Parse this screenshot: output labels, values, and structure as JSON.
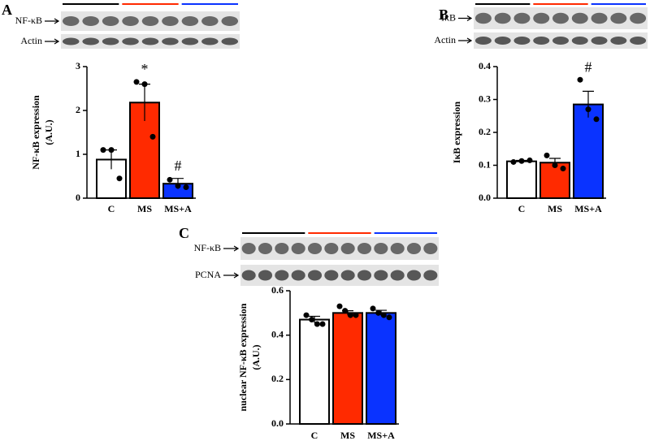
{
  "chart_data": [
    {
      "type": "bar",
      "panel": "A",
      "blots": [
        "NF-κB",
        "Actin"
      ],
      "ylabel": [
        "NF-κB expression",
        "(A.U.)"
      ],
      "categories": [
        "C",
        "MS",
        "MS+A"
      ],
      "colors": [
        "#ffffff",
        "#ff2a00",
        "#0a33ff"
      ],
      "values": [
        0.88,
        2.18,
        0.33
      ],
      "errors": [
        0.22,
        0.42,
        0.12
      ],
      "points": [
        [
          1.1,
          1.1,
          0.45
        ],
        [
          2.65,
          2.6,
          1.4
        ],
        [
          0.42,
          0.28,
          0.25
        ]
      ],
      "bar_labels": [
        null,
        "*",
        "#"
      ],
      "ylim": [
        0,
        3
      ],
      "yticks": [
        0,
        1,
        2,
        3
      ]
    },
    {
      "type": "bar",
      "panel": "B",
      "blots": [
        "IκB",
        "Actin"
      ],
      "ylabel": [
        "IκB expression"
      ],
      "categories": [
        "C",
        "MS",
        "MS+A"
      ],
      "colors": [
        "#ffffff",
        "#ff2a00",
        "#0a33ff"
      ],
      "values": [
        0.112,
        0.108,
        0.285
      ],
      "errors": [
        0.003,
        0.013,
        0.04
      ],
      "points": [
        [
          0.11,
          0.113,
          0.115
        ],
        [
          0.13,
          0.1,
          0.09
        ],
        [
          0.36,
          0.27,
          0.24
        ]
      ],
      "bar_labels": [
        null,
        null,
        "#"
      ],
      "ylim": [
        0,
        0.4
      ],
      "yticks": [
        {
          "value": 0,
          "label": "0.0"
        },
        0.1,
        0.2,
        0.3,
        0.4
      ]
    },
    {
      "type": "bar",
      "panel": "C",
      "blots": [
        "NF-κB",
        "PCNA"
      ],
      "ylabel": [
        "nuclear NF-κB expression",
        "(A.U.)"
      ],
      "categories": [
        "C",
        "MS",
        "MS+A"
      ],
      "colors": [
        "#ffffff",
        "#ff2a00",
        "#0a33ff"
      ],
      "values": [
        0.47,
        0.5,
        0.5
      ],
      "errors": [
        0.015,
        0.01,
        0.012
      ],
      "points": [
        [
          0.49,
          0.47,
          0.45,
          0.45
        ],
        [
          0.53,
          0.51,
          0.49,
          0.49
        ],
        [
          0.52,
          0.5,
          0.49,
          0.48
        ]
      ],
      "bar_labels": [
        null,
        null,
        null
      ],
      "ylim": [
        0,
        0.6
      ],
      "yticks": [
        {
          "value": 0,
          "label": "0.0"
        },
        0.2,
        0.4,
        0.6
      ]
    }
  ]
}
